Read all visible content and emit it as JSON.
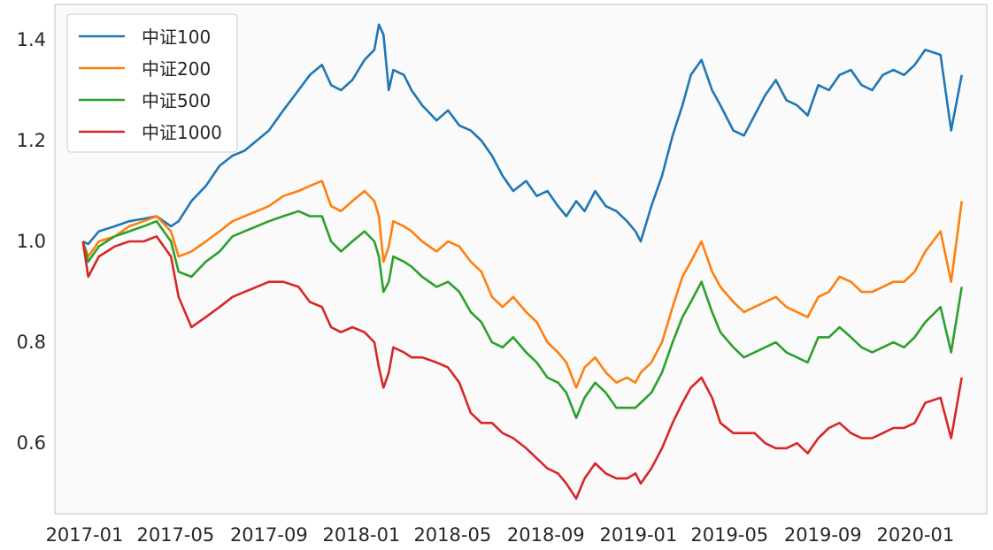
{
  "chart_data": {
    "type": "line",
    "title": "",
    "xlabel": "",
    "ylabel": "",
    "ylim": [
      0.46,
      1.47
    ],
    "grid": false,
    "legend_position": "upper-left",
    "background_color": "#fafafa",
    "axes_edge_color": "#cccccc",
    "x_ticks": [
      "2017-01",
      "2017-05",
      "2017-09",
      "2018-01",
      "2018-05",
      "2018-09",
      "2019-01",
      "2019-05",
      "2019-09",
      "2020-01"
    ],
    "y_ticks": [
      "0.6",
      "0.8",
      "1.0",
      "1.2",
      "1.4"
    ],
    "y_tick_values": [
      0.6,
      0.8,
      1.0,
      1.2,
      1.4
    ],
    "x_range": [
      "2016-11-23",
      "2020-04-04"
    ],
    "x": [
      "2016-12-30",
      "2017-01-06",
      "2017-01-20",
      "2017-02-10",
      "2017-03-01",
      "2017-03-20",
      "2017-04-06",
      "2017-04-25",
      "2017-05-05",
      "2017-05-22",
      "2017-06-10",
      "2017-06-28",
      "2017-07-15",
      "2017-07-31",
      "2017-08-16",
      "2017-09-01",
      "2017-09-20",
      "2017-10-10",
      "2017-10-25",
      "2017-11-10",
      "2017-11-22",
      "2017-12-05",
      "2017-12-20",
      "2018-01-05",
      "2018-01-18",
      "2018-01-24",
      "2018-01-30",
      "2018-02-06",
      "2018-02-12",
      "2018-02-26",
      "2018-03-08",
      "2018-03-22",
      "2018-04-10",
      "2018-04-25",
      "2018-05-10",
      "2018-05-25",
      "2018-06-08",
      "2018-06-22",
      "2018-07-06",
      "2018-07-20",
      "2018-08-06",
      "2018-08-20",
      "2018-09-03",
      "2018-09-17",
      "2018-09-28",
      "2018-10-11",
      "2018-10-22",
      "2018-11-05",
      "2018-11-19",
      "2018-12-03",
      "2018-12-17",
      "2018-12-28",
      "2019-01-04",
      "2019-01-18",
      "2019-02-01",
      "2019-02-15",
      "2019-02-28",
      "2019-03-11",
      "2019-03-25",
      "2019-04-08",
      "2019-04-19",
      "2019-05-06",
      "2019-05-20",
      "2019-06-03",
      "2019-06-17",
      "2019-07-01",
      "2019-07-15",
      "2019-07-29",
      "2019-08-12",
      "2019-08-26",
      "2019-09-09",
      "2019-09-23",
      "2019-10-08",
      "2019-10-22",
      "2019-11-05",
      "2019-11-19",
      "2019-12-03",
      "2019-12-17",
      "2019-12-31",
      "2020-01-14",
      "2020-02-03",
      "2020-02-17",
      "2020-03-02"
    ],
    "series": [
      {
        "name": "中证100",
        "color": "#1f77b4",
        "values": [
          1.0,
          0.995,
          1.02,
          1.03,
          1.04,
          1.045,
          1.05,
          1.03,
          1.04,
          1.08,
          1.11,
          1.15,
          1.17,
          1.18,
          1.2,
          1.22,
          1.26,
          1.3,
          1.33,
          1.35,
          1.31,
          1.3,
          1.32,
          1.36,
          1.38,
          1.43,
          1.41,
          1.3,
          1.34,
          1.33,
          1.3,
          1.27,
          1.24,
          1.26,
          1.23,
          1.22,
          1.2,
          1.17,
          1.13,
          1.1,
          1.12,
          1.09,
          1.1,
          1.07,
          1.05,
          1.08,
          1.06,
          1.1,
          1.07,
          1.06,
          1.04,
          1.02,
          1.0,
          1.07,
          1.13,
          1.21,
          1.27,
          1.33,
          1.36,
          1.3,
          1.27,
          1.22,
          1.21,
          1.25,
          1.29,
          1.32,
          1.28,
          1.27,
          1.25,
          1.31,
          1.3,
          1.33,
          1.34,
          1.31,
          1.3,
          1.33,
          1.34,
          1.33,
          1.35,
          1.38,
          1.37,
          1.22,
          1.33
        ]
      },
      {
        "name": "中证200",
        "color": "#ff7f0e",
        "values": [
          1.0,
          0.97,
          1.0,
          1.01,
          1.03,
          1.04,
          1.05,
          1.02,
          0.97,
          0.98,
          1.0,
          1.02,
          1.04,
          1.05,
          1.06,
          1.07,
          1.09,
          1.1,
          1.11,
          1.12,
          1.07,
          1.06,
          1.08,
          1.1,
          1.08,
          1.05,
          0.96,
          0.99,
          1.04,
          1.03,
          1.02,
          1.0,
          0.98,
          1.0,
          0.99,
          0.96,
          0.94,
          0.89,
          0.87,
          0.89,
          0.86,
          0.84,
          0.8,
          0.78,
          0.76,
          0.71,
          0.75,
          0.77,
          0.74,
          0.72,
          0.73,
          0.72,
          0.74,
          0.76,
          0.8,
          0.87,
          0.93,
          0.96,
          1.0,
          0.94,
          0.91,
          0.88,
          0.86,
          0.87,
          0.88,
          0.89,
          0.87,
          0.86,
          0.85,
          0.89,
          0.9,
          0.93,
          0.92,
          0.9,
          0.9,
          0.91,
          0.92,
          0.92,
          0.94,
          0.98,
          1.02,
          0.92,
          1.08
        ]
      },
      {
        "name": "中证500",
        "color": "#2ca02c",
        "values": [
          1.0,
          0.96,
          0.99,
          1.01,
          1.02,
          1.03,
          1.04,
          1.0,
          0.94,
          0.93,
          0.96,
          0.98,
          1.01,
          1.02,
          1.03,
          1.04,
          1.05,
          1.06,
          1.05,
          1.05,
          1.0,
          0.98,
          1.0,
          1.02,
          1.0,
          0.97,
          0.9,
          0.92,
          0.97,
          0.96,
          0.95,
          0.93,
          0.91,
          0.92,
          0.9,
          0.86,
          0.84,
          0.8,
          0.79,
          0.81,
          0.78,
          0.76,
          0.73,
          0.72,
          0.7,
          0.65,
          0.69,
          0.72,
          0.7,
          0.67,
          0.67,
          0.67,
          0.68,
          0.7,
          0.74,
          0.8,
          0.85,
          0.88,
          0.92,
          0.86,
          0.82,
          0.79,
          0.77,
          0.78,
          0.79,
          0.8,
          0.78,
          0.77,
          0.76,
          0.81,
          0.81,
          0.83,
          0.81,
          0.79,
          0.78,
          0.79,
          0.8,
          0.79,
          0.81,
          0.84,
          0.87,
          0.78,
          0.91
        ]
      },
      {
        "name": "中证1000",
        "color": "#d62728",
        "values": [
          1.0,
          0.93,
          0.97,
          0.99,
          1.0,
          1.0,
          1.01,
          0.97,
          0.89,
          0.83,
          0.85,
          0.87,
          0.89,
          0.9,
          0.91,
          0.92,
          0.92,
          0.91,
          0.88,
          0.87,
          0.83,
          0.82,
          0.83,
          0.82,
          0.8,
          0.75,
          0.71,
          0.74,
          0.79,
          0.78,
          0.77,
          0.77,
          0.76,
          0.75,
          0.72,
          0.66,
          0.64,
          0.64,
          0.62,
          0.61,
          0.59,
          0.57,
          0.55,
          0.54,
          0.52,
          0.49,
          0.53,
          0.56,
          0.54,
          0.53,
          0.53,
          0.54,
          0.52,
          0.55,
          0.59,
          0.64,
          0.68,
          0.71,
          0.73,
          0.69,
          0.64,
          0.62,
          0.62,
          0.62,
          0.6,
          0.59,
          0.59,
          0.6,
          0.58,
          0.61,
          0.63,
          0.64,
          0.62,
          0.61,
          0.61,
          0.62,
          0.63,
          0.63,
          0.64,
          0.68,
          0.69,
          0.61,
          0.73
        ]
      }
    ]
  }
}
